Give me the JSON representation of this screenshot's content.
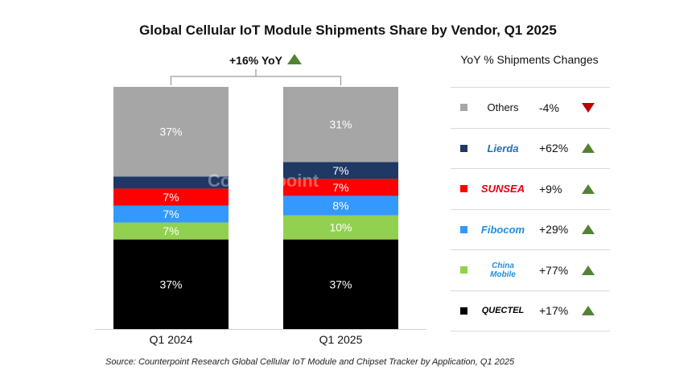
{
  "title": "Global Cellular IoT Module Shipments Share by Vendor, Q1 2025",
  "watermark": "Counterpoint",
  "source": "Source: Counterpoint Research Global Cellular IoT Module and Chipset Tracker by Application, Q1 2025",
  "chart_data": {
    "type": "bar",
    "stacked": true,
    "categories": [
      "Q1 2024",
      "Q1 2025"
    ],
    "series": [
      {
        "name": "QUECTEL",
        "color": "#000000",
        "values": [
          37,
          37
        ],
        "labels": [
          "37%",
          "37%"
        ]
      },
      {
        "name": "China Mobile",
        "color": "#92d050",
        "values": [
          7,
          10
        ],
        "labels": [
          "7%",
          "10%"
        ]
      },
      {
        "name": "Fibocom",
        "color": "#3399ff",
        "values": [
          7,
          8
        ],
        "labels": [
          "7%",
          "8%"
        ]
      },
      {
        "name": "SUNSEA",
        "color": "#ff0000",
        "values": [
          7,
          7
        ],
        "labels": [
          "7%",
          "7%"
        ]
      },
      {
        "name": "Lierda",
        "color": "#1f3864",
        "values": [
          5,
          7
        ],
        "labels": [
          "",
          "7%"
        ]
      },
      {
        "name": "Others",
        "color": "#a6a6a6",
        "values": [
          37,
          31
        ],
        "labels": [
          "37%",
          "31%"
        ]
      }
    ],
    "annotation": "+16% YoY",
    "annotation_trend": "up",
    "legend_title": "YoY % Shipments Changes",
    "legend": [
      {
        "name": "Others",
        "change": "-4%",
        "trend": "down",
        "color": "#a6a6a6",
        "is_logo": false
      },
      {
        "name": "Lierda",
        "change": "+62%",
        "trend": "up",
        "color": "#1f3864",
        "is_logo": true,
        "logo_color": "#1f6fb8"
      },
      {
        "name": "SUNSEA",
        "change": "+9%",
        "trend": "up",
        "color": "#ff0000",
        "is_logo": true,
        "logo_color": "#e60012"
      },
      {
        "name": "Fibocom",
        "change": "+29%",
        "trend": "up",
        "color": "#3399ff",
        "is_logo": true,
        "logo_color": "#1f8fe0"
      },
      {
        "name": "China Mobile",
        "change": "+77%",
        "trend": "up",
        "color": "#92d050",
        "is_logo": true,
        "logo_color": "#1f8fe0"
      },
      {
        "name": "QUECTEL",
        "change": "+17%",
        "trend": "up",
        "color": "#000000",
        "is_logo": true,
        "logo_color": "#000000"
      }
    ]
  }
}
